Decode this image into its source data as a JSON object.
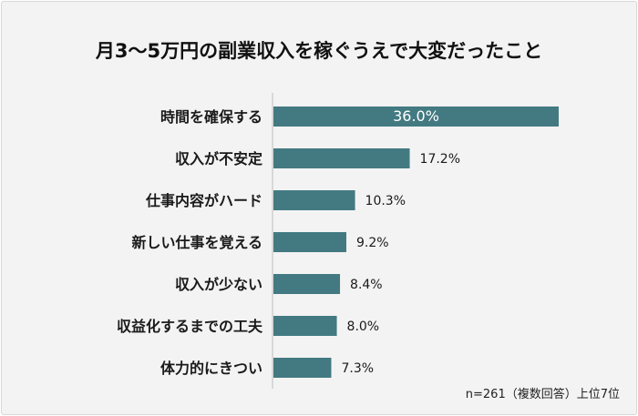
{
  "chart_data": {
    "type": "bar",
    "orientation": "horizontal",
    "title": "月3～5万円の副業収入を稼ぐうえで大変だったこと",
    "categories": [
      "時間を確保する",
      "収入が不安定",
      "仕事内容がハード",
      "新しい仕事を覚える",
      "収入が少ない",
      "収益化するまでの工夫",
      "体力的にきつい"
    ],
    "values": [
      36.0,
      17.2,
      10.3,
      9.2,
      8.4,
      8.0,
      7.3
    ],
    "labels": [
      "36.0%",
      "17.2%",
      "10.3%",
      "9.2%",
      "8.4%",
      "8.0%",
      "7.3%"
    ],
    "unit": "%",
    "xlim": [
      0,
      36
    ],
    "grid": false,
    "bar_color": "#437a82",
    "note": "n=261（複数回答）上位7位"
  }
}
